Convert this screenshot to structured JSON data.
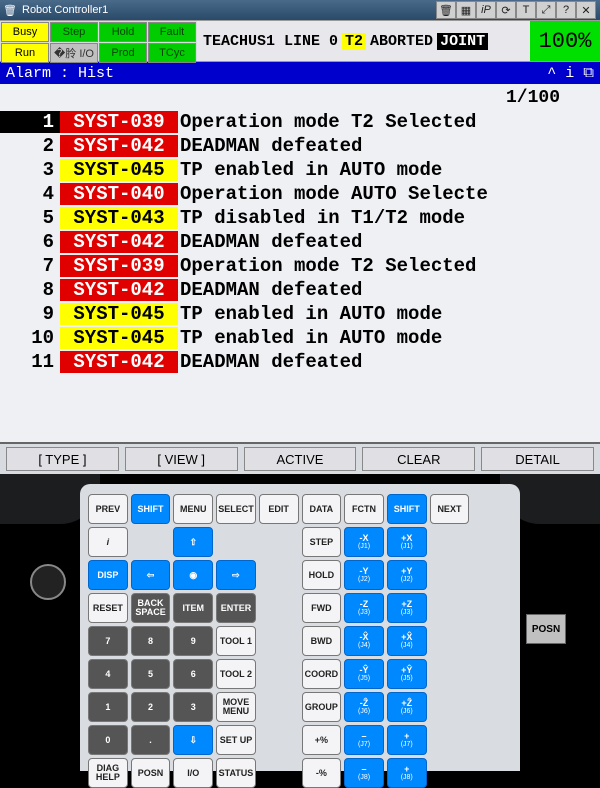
{
  "window": {
    "title": "Robot Controller1"
  },
  "toolbar_icons": [
    "trash",
    "grid",
    "iP",
    "reload",
    "T",
    "expand",
    "help",
    "close"
  ],
  "status": {
    "cells": [
      {
        "label": "Busy",
        "cls": "busy"
      },
      {
        "label": "Step",
        "cls": "green"
      },
      {
        "label": "Hold",
        "cls": "green"
      },
      {
        "label": "Fault",
        "cls": "green"
      },
      {
        "label": "Run",
        "cls": "run"
      },
      {
        "label": "�朎 I/O",
        "cls": "io"
      },
      {
        "label": "Prod",
        "cls": "green"
      },
      {
        "label": "TCyc",
        "cls": "green"
      }
    ],
    "message_prefix": "TEACHUS1 LINE 0",
    "t2": "T2",
    "aborted": "ABORTED",
    "joint": "JOINT",
    "percent": "100%"
  },
  "alarm_header": {
    "title": "Alarm : Hist",
    "icons": "^  i  ⧉"
  },
  "pager": "1/100",
  "alarms": [
    {
      "n": "1",
      "code": "SYST-039",
      "codecls": "code-red",
      "msg": "Operation mode T2 Selected",
      "sel": true
    },
    {
      "n": "2",
      "code": "SYST-042",
      "codecls": "code-red",
      "msg": "DEADMAN defeated"
    },
    {
      "n": "3",
      "code": "SYST-045",
      "codecls": "code-yellow",
      "msg": "TP enabled in AUTO mode"
    },
    {
      "n": "4",
      "code": "SYST-040",
      "codecls": "code-red",
      "msg": "Operation mode AUTO Selecte"
    },
    {
      "n": "5",
      "code": "SYST-043",
      "codecls": "code-yellow",
      "msg": "TP disabled in T1/T2 mode"
    },
    {
      "n": "6",
      "code": "SYST-042",
      "codecls": "code-red",
      "msg": "DEADMAN defeated"
    },
    {
      "n": "7",
      "code": "SYST-039",
      "codecls": "code-red",
      "msg": "Operation mode T2 Selected"
    },
    {
      "n": "8",
      "code": "SYST-042",
      "codecls": "code-red",
      "msg": "DEADMAN defeated"
    },
    {
      "n": "9",
      "code": "SYST-045",
      "codecls": "code-yellow",
      "msg": "TP enabled in AUTO mode"
    },
    {
      "n": "10",
      "code": "SYST-045",
      "codecls": "code-yellow",
      "msg": "TP enabled in AUTO mode"
    },
    {
      "n": "11",
      "code": "SYST-042",
      "codecls": "code-red",
      "msg": "DEADMAN defeated"
    }
  ],
  "buttons": {
    "type": "[ TYPE ]",
    "view": "[ VIEW ]",
    "active": "ACTIVE",
    "clear": "CLEAR",
    "detail": "DETAIL"
  },
  "keys": {
    "row0": [
      "PREV",
      "SHIFT",
      "MENU",
      "SELECT",
      "EDIT",
      "DATA",
      "FCTN",
      "SHIFT",
      "NEXT"
    ],
    "posn": "POSN"
  },
  "jog": {
    "xminus": "-X",
    "xplus": "+X",
    "yminus": "-Y",
    "yplus": "+Y",
    "zminus": "-Z",
    "zplus": "+Z",
    "j1": "(J1)",
    "j2": "(J2)",
    "j3": "(J3)",
    "j4": "(J4)",
    "j5": "(J5)",
    "j6": "(J6)",
    "j7": "(J7)",
    "j8": "(J8)"
  },
  "midkeys": {
    "info": "i",
    "disp": "DISP",
    "step": "STEP",
    "hold": "HOLD",
    "reset": "RESET",
    "back": "BACK SPACE",
    "item": "ITEM",
    "enter": "ENTER",
    "fwd": "FWD",
    "bwd": "BWD",
    "coord": "COORD",
    "group": "GROUP",
    "tool1": "TOOL 1",
    "tool2": "TOOL 2",
    "move": "MOVE MENU",
    "setup": "SET UP",
    "pctplus": "+%",
    "pctminus": "-%",
    "diag": "DIAG HELP",
    "posn": "POSN",
    "io": "I/O",
    "status": "STATUS"
  },
  "nums": {
    "7": "7",
    "8": "8",
    "9": "9",
    "4": "4",
    "5": "5",
    "6": "6",
    "1": "1",
    "2": "2",
    "3": "3",
    "0": "0",
    "dot": ".",
    "dash": "—"
  }
}
